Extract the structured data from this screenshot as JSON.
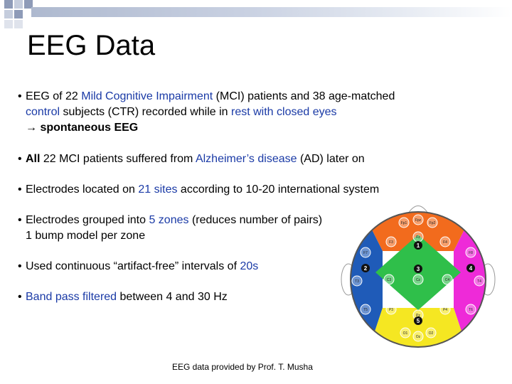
{
  "title": "EEG Data",
  "bullets": [
    {
      "line1": [
        {
          "t": "EEG of 22 ",
          "c": "n"
        },
        {
          "t": "Mild Cognitive Impairment",
          "c": "hl"
        },
        {
          "t": "  (MCI) patients and 38 age-matched",
          "c": "n"
        }
      ],
      "line2": [
        {
          "t": "control",
          "c": "hl"
        },
        {
          "t": " subjects (CTR) recorded while in ",
          "c": "n"
        },
        {
          "t": "rest with closed eyes",
          "c": "hl"
        }
      ],
      "line3": [
        {
          "t": "→ spontaneous EEG",
          "c": "b"
        }
      ]
    },
    {
      "line1": [
        {
          "t": "All",
          "c": "b"
        },
        {
          "t": " 22 MCI patients suffered from ",
          "c": "n"
        },
        {
          "t": "Alzheimer’s disease",
          "c": "hl"
        },
        {
          "t": " (AD) later on",
          "c": "n"
        }
      ]
    },
    {
      "line1": [
        {
          "t": "Electrodes located on ",
          "c": "n"
        },
        {
          "t": "21 sites",
          "c": "hl"
        },
        {
          "t": " according to 10-20 international system",
          "c": "n"
        }
      ]
    },
    {
      "line1": [
        {
          "t": "Electrodes grouped into ",
          "c": "n"
        },
        {
          "t": "5 zones",
          "c": "hl"
        },
        {
          "t": " (reduces number of pairs)",
          "c": "n"
        }
      ],
      "line2": [
        {
          "t": "1 bump model per zone",
          "c": "n"
        }
      ]
    },
    {
      "line1": [
        {
          "t": "Used continuous “artifact-free” intervals of ",
          "c": "n"
        },
        {
          "t": "20s",
          "c": "hl"
        }
      ]
    },
    {
      "line1": [
        {
          "t": "Band pass filtered",
          "c": "hl"
        },
        {
          "t": " between 4 and 30 Hz",
          "c": "n"
        }
      ]
    }
  ],
  "credit": "EEG data  provided by Prof. T. Musha",
  "diagram": {
    "zones": [
      {
        "id": "1",
        "color": "#f26b1d",
        "electrodes": [
          "Fp1",
          "Fp2",
          "Fpz",
          "F3",
          "Fz",
          "F4"
        ]
      },
      {
        "id": "2",
        "color": "#1f5bb8",
        "electrodes": [
          "F7",
          "T3",
          "T5"
        ]
      },
      {
        "id": "3",
        "color": "#2fbf4a",
        "electrodes": [
          "C3",
          "Cz",
          "C4"
        ]
      },
      {
        "id": "4",
        "color": "#ee2ad8",
        "electrodes": [
          "F8",
          "T4",
          "T6"
        ]
      },
      {
        "id": "5",
        "color": "#f5e722",
        "electrodes": [
          "P3",
          "Pz",
          "P4",
          "O1",
          "Oz",
          "O2"
        ]
      }
    ]
  }
}
